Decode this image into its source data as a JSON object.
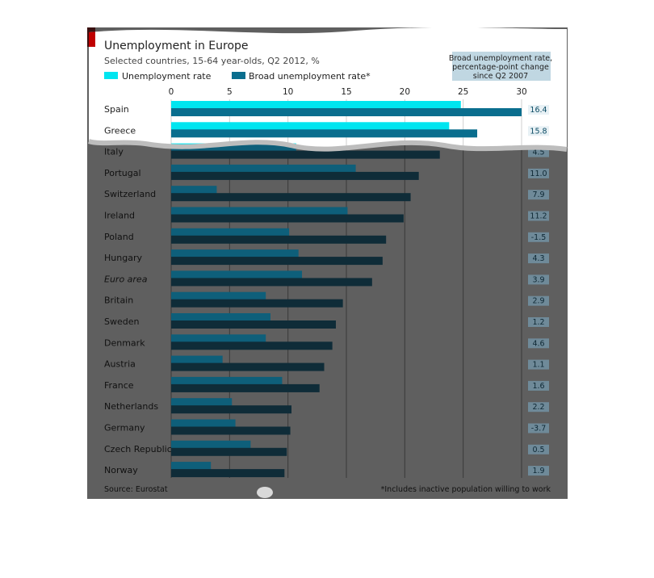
{
  "chart_data": {
    "type": "bar",
    "orientation": "horizontal",
    "title": "Unemployment in Europe",
    "subtitle": "Selected countries, 15-64 year-olds, Q2 2012, %",
    "right_column_title": [
      "Broad unemployment rate,",
      "percentage-point change",
      "since Q2 2007"
    ],
    "xlim": [
      0,
      30
    ],
    "xticks": [
      0,
      5,
      10,
      15,
      20,
      25,
      30
    ],
    "grid": true,
    "legend_position": "top-left",
    "categories": [
      "Spain",
      "Greece",
      "Italy",
      "Portugal",
      "Switzerland",
      "Ireland",
      "Poland",
      "Hungary",
      "Euro area",
      "Britain",
      "Sweden",
      "Denmark",
      "Austria",
      "France",
      "Netherlands",
      "Germany",
      "Czech Republic",
      "Norway"
    ],
    "italic_categories": [
      "Euro area"
    ],
    "series": [
      {
        "name": "Unemployment rate",
        "color": "#00e5f0",
        "values": [
          24.8,
          23.8,
          10.7,
          15.8,
          3.9,
          15.1,
          10.1,
          10.9,
          11.2,
          8.1,
          8.5,
          8.1,
          4.4,
          9.5,
          5.2,
          5.5,
          6.8,
          3.4
        ]
      },
      {
        "name": "Broad unemployment rate*",
        "color": "#0a6e8e",
        "values": [
          30.0,
          26.2,
          23.0,
          21.2,
          20.5,
          19.9,
          18.4,
          18.1,
          17.2,
          14.7,
          14.1,
          13.8,
          13.1,
          12.7,
          10.3,
          10.2,
          9.9,
          9.7
        ]
      }
    ],
    "change_values": [
      "16.4",
      "15.8",
      "4.5",
      "11.0",
      "7.9",
      "11.2",
      "-1.5",
      "4.3",
      "3.9",
      "2.9",
      "1.2",
      "4.6",
      "1.1",
      "1.6",
      "2.2",
      "-3.7",
      "0.5",
      "1.9"
    ],
    "source": "Source: Eurostat",
    "footnote": "*Includes inactive population willing to work"
  },
  "colors": {
    "overlay": "#5f5f5f",
    "panel": "#ffffff",
    "accent_red": "#c00000",
    "gridline": "#3a3a3a",
    "dim_row_text": "#111111",
    "highlight_row_text": "#222222",
    "badge_bg": "#6f8a99",
    "dim_bar_light": "#0e5f7a",
    "dim_bar_dark": "#0f2c38"
  }
}
